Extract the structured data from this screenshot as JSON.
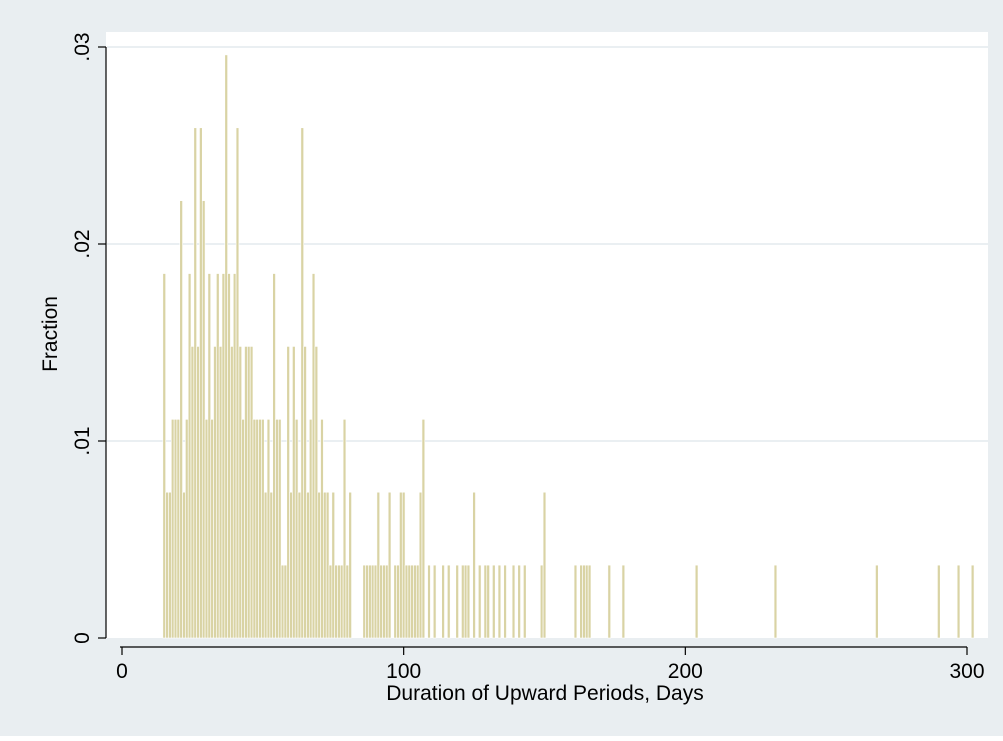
{
  "chart_data": {
    "type": "bar",
    "title": "",
    "xlabel": "Duration of Upward Periods, Days",
    "ylabel": "Fraction",
    "xlim": [
      -5,
      308
    ],
    "ylim": [
      0,
      0.03
    ],
    "x_ticks": [
      0,
      100,
      200,
      300
    ],
    "x_tick_labels": [
      "0",
      "100",
      "200",
      "300"
    ],
    "y_ticks": [
      0,
      0.01,
      0.02,
      0.03
    ],
    "y_tick_labels": [
      "0",
      ".01",
      ".02",
      ".03"
    ],
    "grid": "horizontal",
    "legend": "none",
    "bin_width_days": 1,
    "colors": {
      "outer_background": "#e9eef1",
      "plot_background": "#ffffff",
      "bar": "#d9d3a4",
      "gridline": "#e3eaed",
      "axis": "#000000"
    },
    "x": [
      15,
      16,
      17,
      18,
      19,
      20,
      21,
      22,
      23,
      24,
      25,
      26,
      27,
      28,
      29,
      30,
      31,
      32,
      33,
      34,
      35,
      36,
      37,
      38,
      39,
      40,
      41,
      42,
      43,
      44,
      45,
      46,
      47,
      48,
      49,
      50,
      51,
      52,
      53,
      54,
      55,
      56,
      57,
      58,
      59,
      60,
      61,
      62,
      63,
      64,
      65,
      66,
      67,
      68,
      69,
      70,
      71,
      72,
      73,
      74,
      75,
      76,
      77,
      78,
      79,
      80,
      81,
      86,
      87,
      88,
      89,
      90,
      91,
      92,
      93,
      94,
      95,
      97,
      98,
      99,
      100,
      101,
      102,
      103,
      104,
      105,
      106,
      107,
      109,
      111,
      114,
      116,
      119,
      121,
      122,
      123,
      125,
      127,
      129,
      130,
      132,
      134,
      136,
      139,
      141,
      143,
      149,
      150,
      161,
      163,
      164,
      165,
      166,
      173,
      178,
      204,
      232,
      268,
      290,
      297,
      302
    ],
    "values": [
      0.0185,
      0.0074,
      0.0074,
      0.0111,
      0.0111,
      0.0111,
      0.0222,
      0.0074,
      0.0111,
      0.0185,
      0.0148,
      0.0259,
      0.0148,
      0.0259,
      0.0222,
      0.0111,
      0.0185,
      0.0111,
      0.0148,
      0.0185,
      0.0148,
      0.0185,
      0.0296,
      0.0185,
      0.0148,
      0.0185,
      0.0259,
      0.0148,
      0.0111,
      0.0148,
      0.0148,
      0.0148,
      0.0111,
      0.0111,
      0.0111,
      0.0111,
      0.0074,
      0.0111,
      0.0074,
      0.0185,
      0.0111,
      0.0111,
      0.0037,
      0.0037,
      0.0148,
      0.0074,
      0.0148,
      0.0111,
      0.0074,
      0.0259,
      0.0148,
      0.0074,
      0.0111,
      0.0185,
      0.0148,
      0.0074,
      0.0111,
      0.0074,
      0.0074,
      0.0037,
      0.0074,
      0.0037,
      0.0037,
      0.0037,
      0.0111,
      0.0037,
      0.0074,
      0.0037,
      0.0037,
      0.0037,
      0.0037,
      0.0037,
      0.0074,
      0.0037,
      0.0037,
      0.0037,
      0.0074,
      0.0037,
      0.0037,
      0.0074,
      0.0074,
      0.0037,
      0.0037,
      0.0037,
      0.0037,
      0.0037,
      0.0074,
      0.0111,
      0.0037,
      0.0037,
      0.0037,
      0.0037,
      0.0037,
      0.0037,
      0.0037,
      0.0037,
      0.0074,
      0.0037,
      0.0037,
      0.0037,
      0.0037,
      0.0037,
      0.0037,
      0.0037,
      0.0037,
      0.0037,
      0.0037,
      0.0074,
      0.0037,
      0.0037,
      0.0037,
      0.0037,
      0.0037,
      0.0037,
      0.0037,
      0.0037,
      0.0037,
      0.0037,
      0.0037,
      0.0037,
      0.0037
    ]
  }
}
